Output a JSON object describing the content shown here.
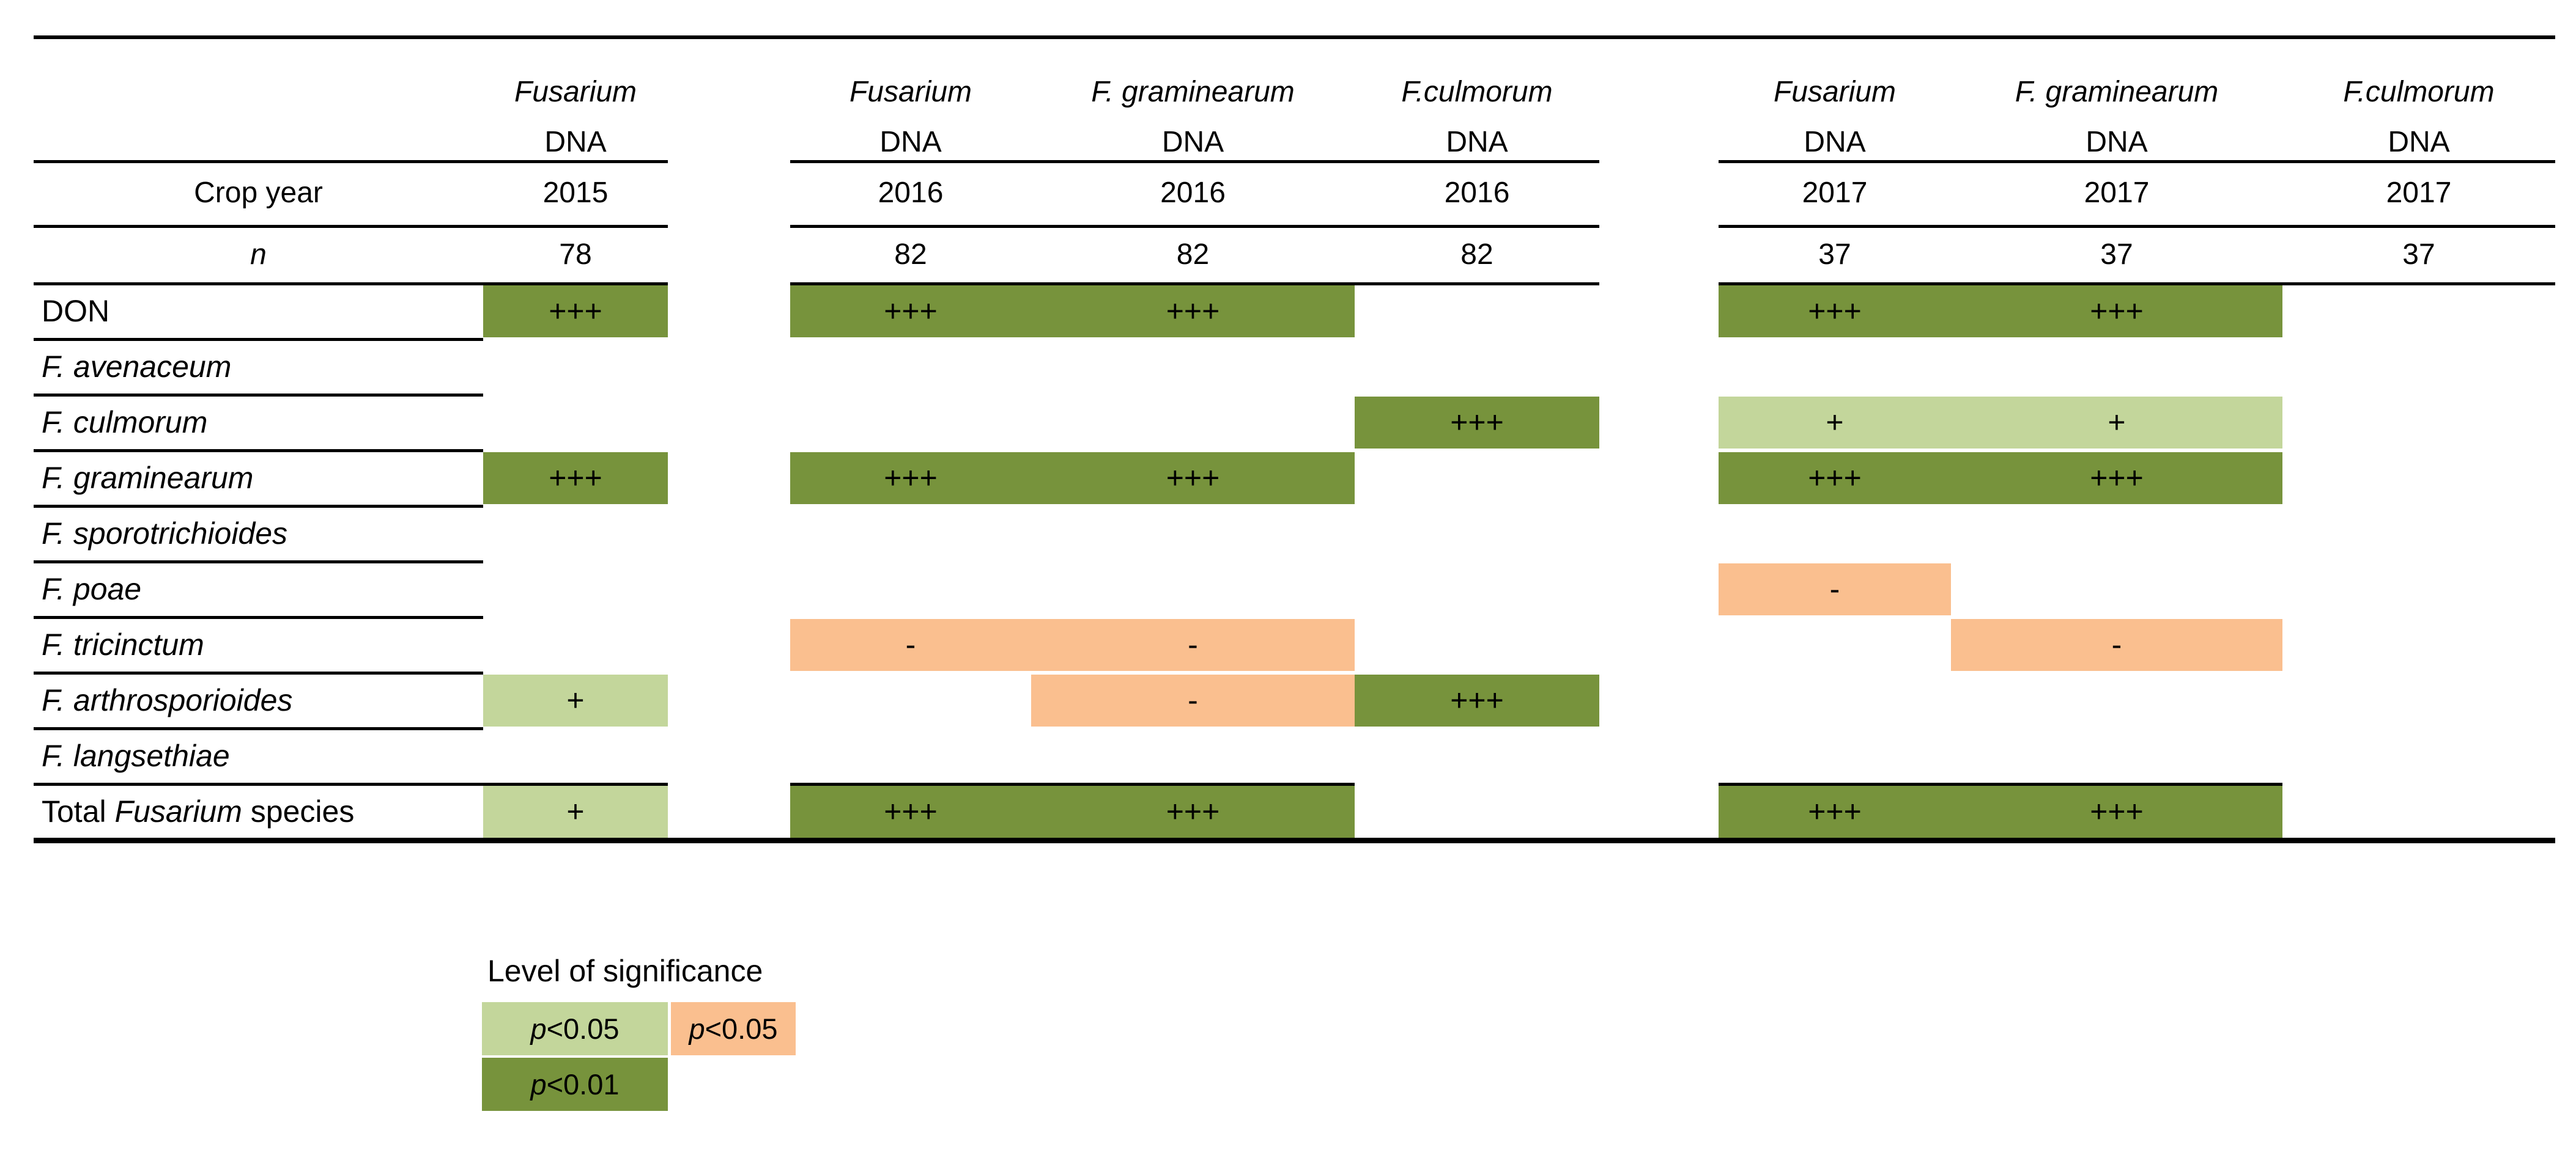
{
  "colors": {
    "pos_strong": "#77933C",
    "pos": "#C3D69B",
    "neg": "#FABF8F",
    "rule": "#000000"
  },
  "table": {
    "row_header": {
      "crop_year_label": "Crop year",
      "n_label": "n"
    },
    "groups": [
      {
        "year": "2015",
        "columns": [
          {
            "title": "Fusarium",
            "subtitle": "DNA",
            "n": "78"
          }
        ]
      },
      {
        "year": "2016",
        "columns": [
          {
            "title": "Fusarium",
            "subtitle": "DNA",
            "n": "82"
          },
          {
            "title": "F. graminearum",
            "subtitle": "DNA",
            "n": "82"
          },
          {
            "title": "F.culmorum",
            "subtitle": "DNA",
            "n": "82"
          }
        ]
      },
      {
        "year": "2017",
        "columns": [
          {
            "title": "Fusarium",
            "subtitle": "DNA",
            "n": "37"
          },
          {
            "title": "F. graminearum",
            "subtitle": "DNA",
            "n": "37"
          },
          {
            "title": "F.culmorum",
            "subtitle": "DNA",
            "n": "37"
          }
        ]
      }
    ],
    "rows": [
      {
        "parts": [
          {
            "t": "DON",
            "i": false
          }
        ]
      },
      {
        "parts": [
          {
            "t": "F. avenaceum",
            "i": true
          }
        ]
      },
      {
        "parts": [
          {
            "t": "F. culmorum",
            "i": true
          }
        ]
      },
      {
        "parts": [
          {
            "t": "F. graminearum",
            "i": true
          }
        ]
      },
      {
        "parts": [
          {
            "t": "F. sporotrichioides",
            "i": true
          }
        ]
      },
      {
        "parts": [
          {
            "t": "F. poae",
            "i": true
          }
        ]
      },
      {
        "parts": [
          {
            "t": "F. tricinctum",
            "i": true
          }
        ]
      },
      {
        "parts": [
          {
            "t": "F. arthrosporioides",
            "i": true
          }
        ]
      },
      {
        "parts": [
          {
            "t": "F. langsethiae",
            "i": true
          }
        ]
      },
      {
        "parts": [
          {
            "t": "Total ",
            "i": false
          },
          {
            "t": "Fusarium",
            "i": true
          },
          {
            "t": " species",
            "i": false
          }
        ]
      }
    ],
    "cells": [
      {
        "row": 0,
        "group": 0,
        "col_start": 0,
        "col_end": 0,
        "level": "pos_strong",
        "symbols": [
          "+++"
        ]
      },
      {
        "row": 0,
        "group": 1,
        "col_start": 0,
        "col_end": 1,
        "level": "pos_strong",
        "symbols": [
          "+++",
          "+++"
        ]
      },
      {
        "row": 0,
        "group": 2,
        "col_start": 0,
        "col_end": 1,
        "level": "pos_strong",
        "symbols": [
          "+++",
          "+++"
        ]
      },
      {
        "row": 2,
        "group": 1,
        "col_start": 2,
        "col_end": 2,
        "level": "pos_strong",
        "symbols": [
          "+++"
        ]
      },
      {
        "row": 2,
        "group": 2,
        "col_start": 0,
        "col_end": 1,
        "level": "pos",
        "symbols": [
          "+",
          "+"
        ]
      },
      {
        "row": 3,
        "group": 0,
        "col_start": 0,
        "col_end": 0,
        "level": "pos_strong",
        "symbols": [
          "+++"
        ]
      },
      {
        "row": 3,
        "group": 1,
        "col_start": 0,
        "col_end": 1,
        "level": "pos_strong",
        "symbols": [
          "+++",
          "+++"
        ]
      },
      {
        "row": 3,
        "group": 2,
        "col_start": 0,
        "col_end": 1,
        "level": "pos_strong",
        "symbols": [
          "+++",
          "+++"
        ]
      },
      {
        "row": 5,
        "group": 2,
        "col_start": 0,
        "col_end": 0,
        "level": "neg",
        "symbols": [
          "-"
        ]
      },
      {
        "row": 6,
        "group": 1,
        "col_start": 0,
        "col_end": 1,
        "level": "neg",
        "symbols": [
          "-",
          "-"
        ]
      },
      {
        "row": 6,
        "group": 2,
        "col_start": 1,
        "col_end": 1,
        "level": "neg",
        "symbols": [
          "-"
        ]
      },
      {
        "row": 7,
        "group": 0,
        "col_start": 0,
        "col_end": 0,
        "level": "pos",
        "symbols": [
          "+"
        ]
      },
      {
        "row": 7,
        "group": 1,
        "col_start": 1,
        "col_end": 1,
        "level": "neg",
        "symbols": [
          "-"
        ]
      },
      {
        "row": 7,
        "group": 1,
        "col_start": 2,
        "col_end": 2,
        "level": "pos_strong",
        "symbols": [
          "+++"
        ]
      },
      {
        "row": 9,
        "group": 0,
        "col_start": 0,
        "col_end": 0,
        "level": "pos",
        "symbols": [
          "+"
        ]
      },
      {
        "row": 9,
        "group": 1,
        "col_start": 0,
        "col_end": 1,
        "level": "pos_strong",
        "symbols": [
          "+++",
          "+++"
        ]
      },
      {
        "row": 9,
        "group": 2,
        "col_start": 0,
        "col_end": 1,
        "level": "pos_strong",
        "symbols": [
          "+++",
          "+++"
        ]
      }
    ]
  },
  "legend": {
    "title": "Level of significance",
    "entries": [
      {
        "label_italic": "p",
        "label_rest": "<0.05",
        "level": "pos",
        "slot": "row1-left"
      },
      {
        "label_italic": "p",
        "label_rest": "<0.05",
        "level": "neg",
        "slot": "row1-right"
      },
      {
        "label_italic": "p",
        "label_rest": "<0.01",
        "level": "pos_strong",
        "slot": "row2-left"
      }
    ]
  },
  "chart_data": {
    "type": "table",
    "title": "Correlation significance of Fusarium DNA with mycotoxin/species measures by crop year",
    "legend_title": "Level of significance",
    "symbol_meaning": {
      "+++": "positive, p<0.01 (dark green)",
      "+": "positive, p<0.05 (light green)",
      "-": "negative, p<0.05 (orange)"
    },
    "columns": [
      {
        "header": "Fusarium DNA",
        "crop_year": "2015",
        "n": 78
      },
      {
        "header": "Fusarium DNA",
        "crop_year": "2016",
        "n": 82
      },
      {
        "header": "F. graminearum DNA",
        "crop_year": "2016",
        "n": 82
      },
      {
        "header": "F.culmorum DNA",
        "crop_year": "2016",
        "n": 82
      },
      {
        "header": "Fusarium DNA",
        "crop_year": "2017",
        "n": 37
      },
      {
        "header": "F. graminearum DNA",
        "crop_year": "2017",
        "n": 37
      },
      {
        "header": "F.culmorum DNA",
        "crop_year": "2017",
        "n": 37
      }
    ],
    "rows": [
      "DON",
      "F. avenaceum",
      "F. culmorum",
      "F. graminearum",
      "F. sporotrichioides",
      "F. poae",
      "F. tricinctum",
      "F. arthrosporioides",
      "F. langsethiae",
      "Total Fusarium species"
    ],
    "values": [
      [
        "+++",
        "+++",
        "+++",
        "",
        "+++",
        "+++",
        ""
      ],
      [
        "",
        "",
        "",
        "",
        "",
        "",
        ""
      ],
      [
        "",
        "",
        "",
        "+++",
        "+",
        "+",
        ""
      ],
      [
        "+++",
        "+++",
        "+++",
        "",
        "+++",
        "+++",
        ""
      ],
      [
        "",
        "",
        "",
        "",
        "",
        "",
        ""
      ],
      [
        "",
        "",
        "",
        "",
        "-",
        "",
        ""
      ],
      [
        "",
        "-",
        "-",
        "",
        "",
        "-",
        ""
      ],
      [
        "+",
        "",
        "-",
        "+++",
        "",
        "",
        ""
      ],
      [
        "",
        "",
        "",
        "",
        "",
        "",
        ""
      ],
      [
        "+",
        "+++",
        "+++",
        "",
        "+++",
        "+++",
        ""
      ]
    ]
  }
}
